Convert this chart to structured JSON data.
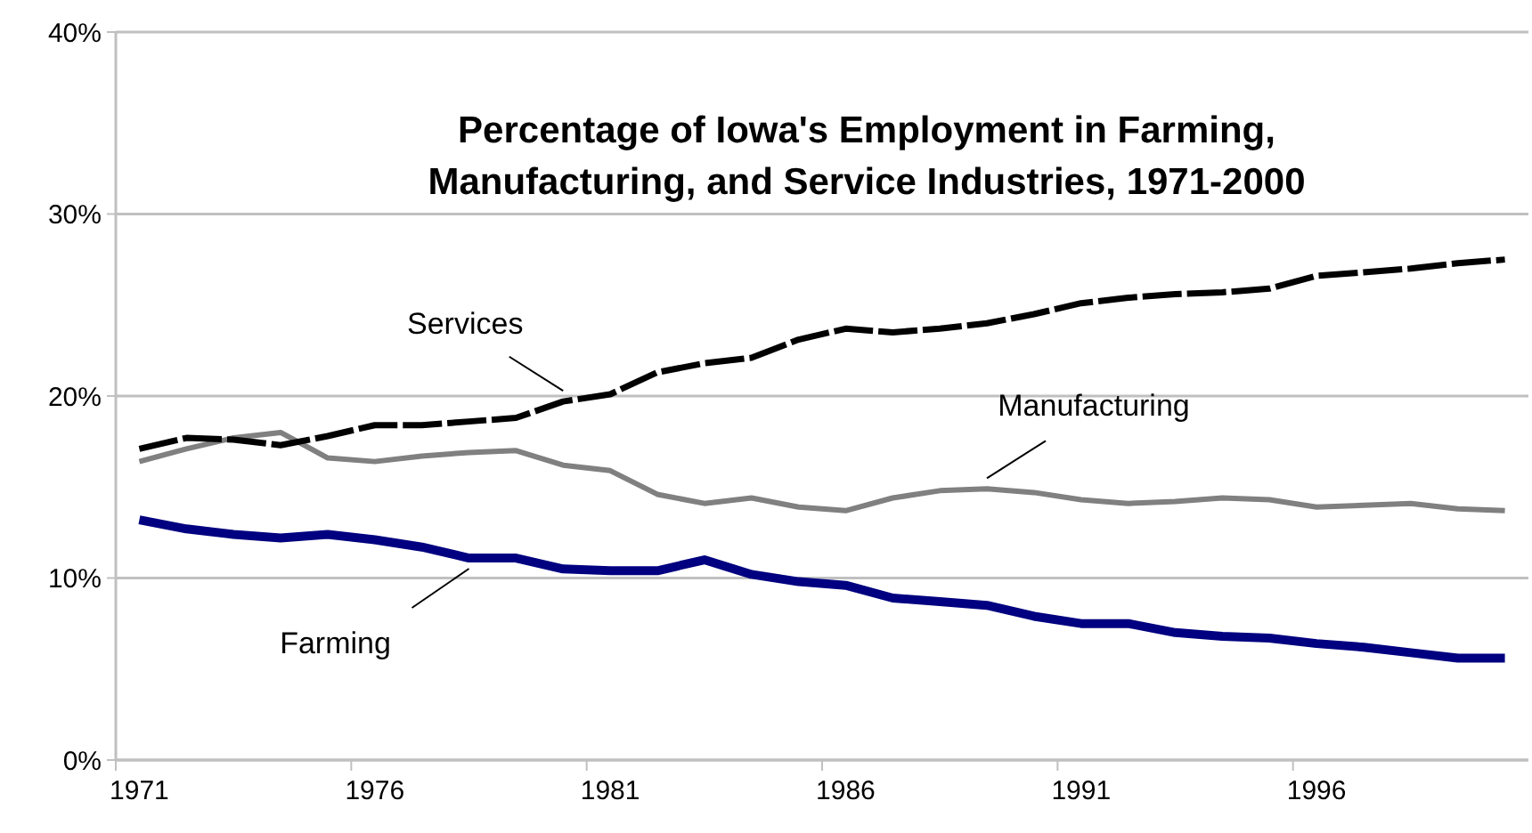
{
  "chart_data": {
    "type": "line",
    "title": "Percentage of Iowa's Employment in Farming,\nManufacturing, and Service Industries, 1971-2000",
    "categories": [
      "1971",
      null,
      null,
      null,
      null,
      "1976",
      null,
      null,
      null,
      null,
      "1981",
      null,
      null,
      null,
      null,
      "1986",
      null,
      null,
      null,
      null,
      "1991",
      null,
      null,
      null,
      null,
      "1996",
      null,
      null,
      null,
      null
    ],
    "ylim": [
      0,
      40
    ],
    "yticks": [
      {
        "value": 0,
        "label": "0%"
      },
      {
        "value": 10,
        "label": "10%"
      },
      {
        "value": 20,
        "label": "20%"
      },
      {
        "value": 30,
        "label": "30%"
      },
      {
        "value": 40,
        "label": "40%"
      }
    ],
    "grid": "y",
    "legend": false,
    "marker": "none",
    "series": [
      {
        "name": "Farming",
        "color": "#000080",
        "line_style": "solid",
        "values": [
          13.2,
          12.7,
          12.4,
          12.2,
          12.4,
          12.1,
          11.7,
          11.1,
          11.1,
          10.5,
          10.4,
          10.4,
          11.0,
          10.2,
          9.8,
          9.6,
          8.9,
          8.7,
          8.5,
          7.9,
          7.5,
          7.5,
          7.0,
          6.8,
          6.7,
          6.4,
          6.2,
          5.9,
          5.6,
          5.6
        ]
      },
      {
        "name": "Manufacturing",
        "color": "#808080",
        "line_style": "solid",
        "values": [
          16.4,
          17.1,
          17.7,
          18.0,
          16.6,
          16.4,
          16.7,
          16.9,
          17.0,
          16.2,
          15.9,
          14.6,
          14.1,
          14.4,
          13.9,
          13.7,
          14.4,
          14.8,
          14.9,
          14.7,
          14.3,
          14.1,
          14.2,
          14.4,
          14.3,
          13.9,
          14.0,
          14.1,
          13.8,
          13.7
        ]
      },
      {
        "name": "Services",
        "color": "#000000",
        "line_style": "dashed",
        "values": [
          17.1,
          17.7,
          17.6,
          17.3,
          17.8,
          18.4,
          18.4,
          18.6,
          18.8,
          19.7,
          20.1,
          21.3,
          21.8,
          22.1,
          23.1,
          23.7,
          23.5,
          23.7,
          24.0,
          24.5,
          25.1,
          25.4,
          25.6,
          25.7,
          25.9,
          26.6,
          26.8,
          27.0,
          27.3,
          27.5
        ]
      }
    ]
  }
}
